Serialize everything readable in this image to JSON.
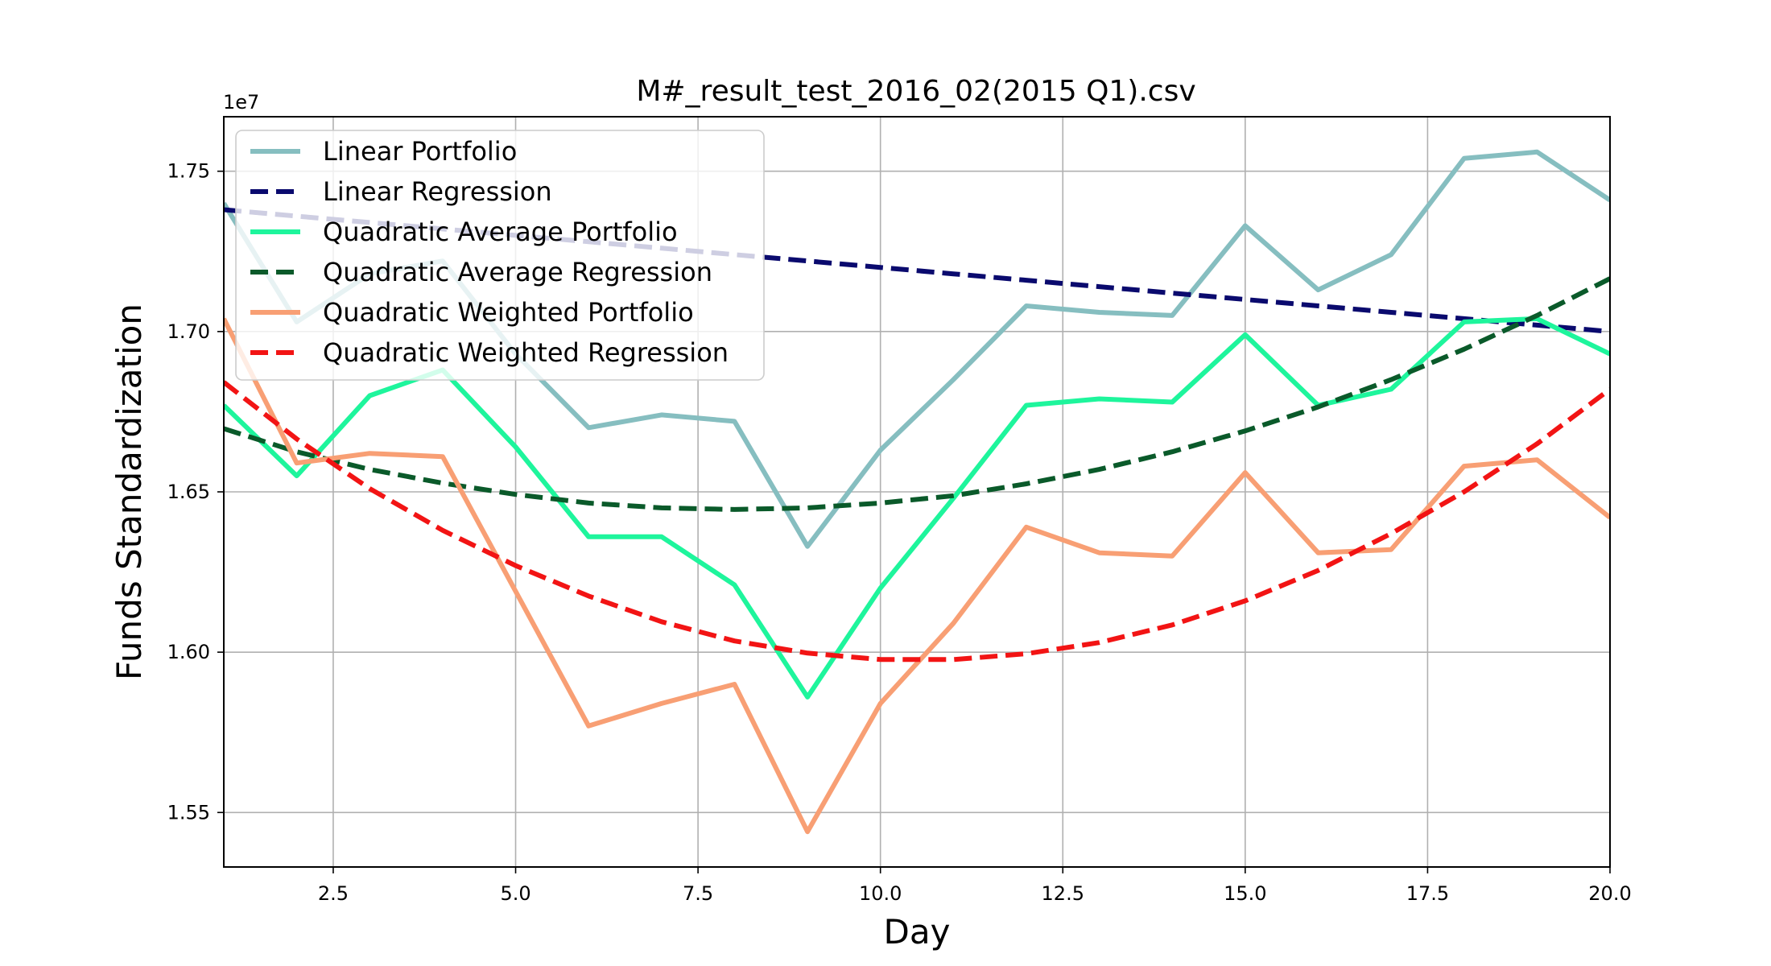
{
  "chart_data": {
    "type": "line",
    "title": "M#_result_test_2016_02(2015 Q1).csv",
    "xlabel": "Day",
    "ylabel": "Funds Standardization",
    "y_offset_label": "1e7",
    "xlim": [
      1,
      20
    ],
    "ylim": [
      1.533,
      1.767
    ],
    "x_ticks": [
      2.5,
      5.0,
      7.5,
      10.0,
      12.5,
      15.0,
      17.5,
      20.0
    ],
    "x_tick_labels": [
      "2.5",
      "5.0",
      "7.5",
      "10.0",
      "12.5",
      "15.0",
      "17.5",
      "20.0"
    ],
    "y_ticks": [
      1.55,
      1.6,
      1.65,
      1.7,
      1.75
    ],
    "y_tick_labels": [
      "1.55",
      "1.60",
      "1.65",
      "1.70",
      "1.75"
    ],
    "grid": true,
    "legend_position": "top-left",
    "x": [
      1,
      2,
      3,
      4,
      5,
      6,
      7,
      8,
      9,
      10,
      11,
      12,
      13,
      14,
      15,
      16,
      17,
      18,
      19,
      20
    ],
    "series": [
      {
        "name": "Linear Portfolio",
        "style": "solid",
        "color": "#86BEC0",
        "values": [
          1.74,
          1.703,
          1.718,
          1.722,
          1.693,
          1.67,
          1.674,
          1.672,
          1.633,
          1.663,
          1.685,
          1.708,
          1.706,
          1.705,
          1.733,
          1.713,
          1.724,
          1.754,
          1.756,
          1.741
        ]
      },
      {
        "name": "Linear Regression",
        "style": "dashed",
        "color": "#0A0A6E",
        "values": [
          1.738,
          1.736,
          1.734,
          1.732,
          1.73,
          1.728,
          1.726,
          1.724,
          1.722,
          1.72,
          1.718,
          1.716,
          1.714,
          1.712,
          1.71,
          1.708,
          1.706,
          1.704,
          1.702,
          1.7
        ]
      },
      {
        "name": "Quadratic Average Portfolio",
        "style": "solid",
        "color": "#1EF59C",
        "values": [
          1.677,
          1.655,
          1.68,
          1.688,
          1.664,
          1.636,
          1.636,
          1.621,
          1.586,
          1.62,
          1.648,
          1.677,
          1.679,
          1.678,
          1.699,
          1.677,
          1.682,
          1.703,
          1.704,
          1.693
        ]
      },
      {
        "name": "Quadratic Average Regression",
        "style": "dashed",
        "color": "#0A5A2A",
        "values": [
          1.6697,
          1.6625,
          1.657,
          1.6527,
          1.6492,
          1.6465,
          1.645,
          1.6445,
          1.645,
          1.6465,
          1.6488,
          1.6525,
          1.657,
          1.6625,
          1.669,
          1.6765,
          1.685,
          1.6945,
          1.705,
          1.7165
        ]
      },
      {
        "name": "Quadratic Weighted Portfolio",
        "style": "solid",
        "color": "#F89F74",
        "values": [
          1.704,
          1.659,
          1.662,
          1.661,
          1.619,
          1.577,
          1.584,
          1.59,
          1.544,
          1.584,
          1.609,
          1.639,
          1.631,
          1.63,
          1.656,
          1.631,
          1.632,
          1.658,
          1.66,
          1.642
        ]
      },
      {
        "name": "Quadratic Weighted Regression",
        "style": "dashed",
        "color": "#F21414",
        "values": [
          1.6842,
          1.6665,
          1.651,
          1.638,
          1.627,
          1.6175,
          1.6095,
          1.6035,
          1.5997,
          1.5977,
          1.5977,
          1.5995,
          1.603,
          1.6085,
          1.616,
          1.6255,
          1.637,
          1.65,
          1.665,
          1.682
        ]
      }
    ]
  }
}
